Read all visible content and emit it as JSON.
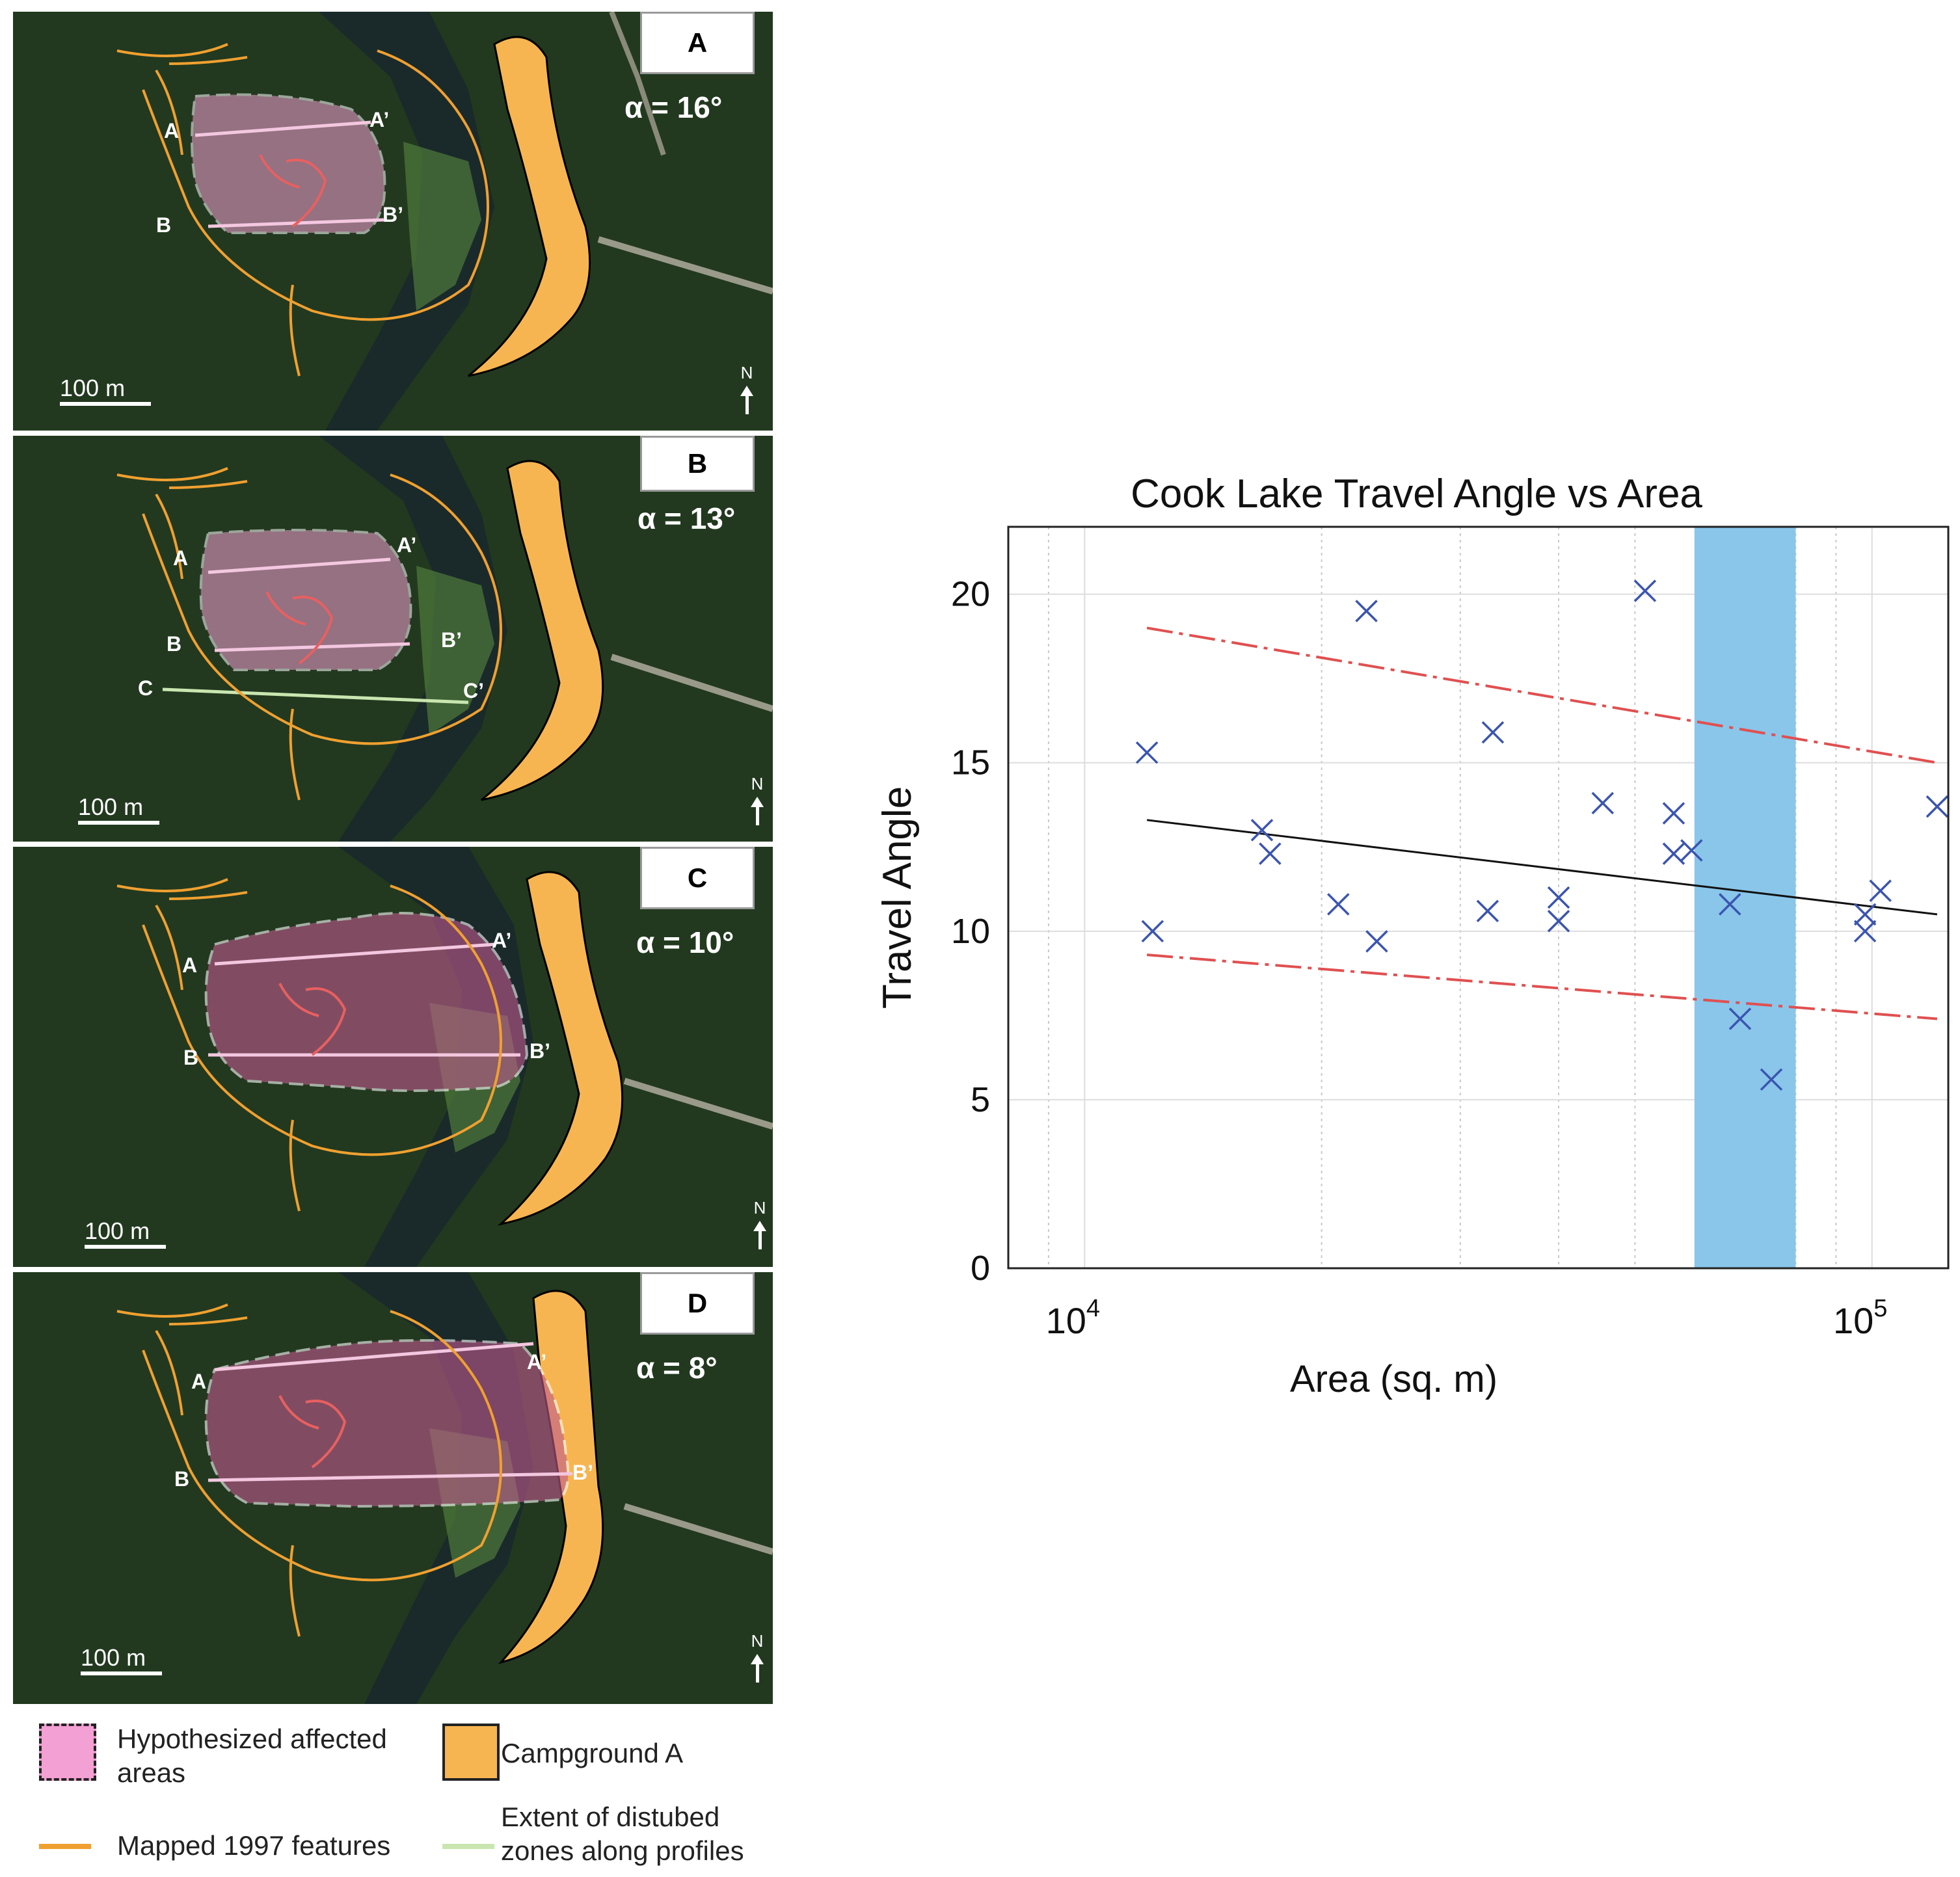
{
  "panels": [
    {
      "label": "A",
      "alpha": "α = 16°",
      "scale": "100 m",
      "north": "N",
      "points": [
        "A",
        "A’",
        "B",
        "B’"
      ]
    },
    {
      "label": "B",
      "alpha": "α = 13°",
      "scale": "100 m",
      "north": "N",
      "points": [
        "A",
        "A’",
        "B",
        "B’",
        "C",
        "C’"
      ]
    },
    {
      "label": "C",
      "alpha": "α = 10°",
      "scale": "100 m",
      "north": "N",
      "points": [
        "A",
        "A’",
        "B",
        "B’"
      ]
    },
    {
      "label": "D",
      "alpha": "α = 8°",
      "scale": "100 m",
      "north": "N",
      "points": [
        "A",
        "A’",
        "B",
        "B’"
      ]
    }
  ],
  "legend": {
    "affected": "Hypothesized affected areas",
    "campground": "Campground A",
    "mapped": "Mapped 1997 features",
    "extent": "Extent of distubed zones along profiles"
  },
  "colors": {
    "affected": "#f3a0d4",
    "campground": "#f7b552",
    "mapped": "#f0a030",
    "extent": "#c9e6b0",
    "band": "#89c6ea",
    "markers": "#3b55b0",
    "fit": "#111111",
    "bounds": "#e05050"
  },
  "chart_data": {
    "type": "scatter",
    "title": "Cook Lake Travel Angle vs Area",
    "xlabel": "Area (sq. m)",
    "ylabel": "Travel Angle",
    "xscale": "log",
    "xlim": [
      8000,
      125000
    ],
    "ylim": [
      0,
      22
    ],
    "yticks": [
      0,
      5,
      10,
      15,
      20
    ],
    "xticks": [
      {
        "value": 10000,
        "base": "10",
        "exp": "4"
      },
      {
        "value": 100000,
        "base": "10",
        "exp": "5"
      }
    ],
    "grid": true,
    "points": [
      {
        "x": 12000,
        "y": 15.3
      },
      {
        "x": 12200,
        "y": 10.0
      },
      {
        "x": 16800,
        "y": 13.0
      },
      {
        "x": 17200,
        "y": 12.3
      },
      {
        "x": 21000,
        "y": 10.8
      },
      {
        "x": 22800,
        "y": 19.5
      },
      {
        "x": 23500,
        "y": 9.7
      },
      {
        "x": 32500,
        "y": 10.6
      },
      {
        "x": 33000,
        "y": 15.9
      },
      {
        "x": 40000,
        "y": 11.0
      },
      {
        "x": 40000,
        "y": 10.3
      },
      {
        "x": 45500,
        "y": 13.8
      },
      {
        "x": 51500,
        "y": 20.1
      },
      {
        "x": 56000,
        "y": 13.5
      },
      {
        "x": 56000,
        "y": 12.3
      },
      {
        "x": 59000,
        "y": 12.4
      },
      {
        "x": 66000,
        "y": 10.8
      },
      {
        "x": 68000,
        "y": 7.4
      },
      {
        "x": 74500,
        "y": 5.6
      },
      {
        "x": 98000,
        "y": 10.5
      },
      {
        "x": 98000,
        "y": 10.0
      },
      {
        "x": 102500,
        "y": 11.2
      },
      {
        "x": 121000,
        "y": 13.7
      }
    ],
    "fit_line": {
      "x": [
        12000,
        121000
      ],
      "y": [
        13.3,
        10.5
      ]
    },
    "upper_bound": {
      "x": [
        12000,
        121000
      ],
      "y": [
        19.0,
        15.0
      ]
    },
    "lower_bound": {
      "x": [
        12000,
        121000
      ],
      "y": [
        9.3,
        7.4
      ]
    },
    "band": {
      "x": [
        59500,
        80000
      ]
    }
  }
}
